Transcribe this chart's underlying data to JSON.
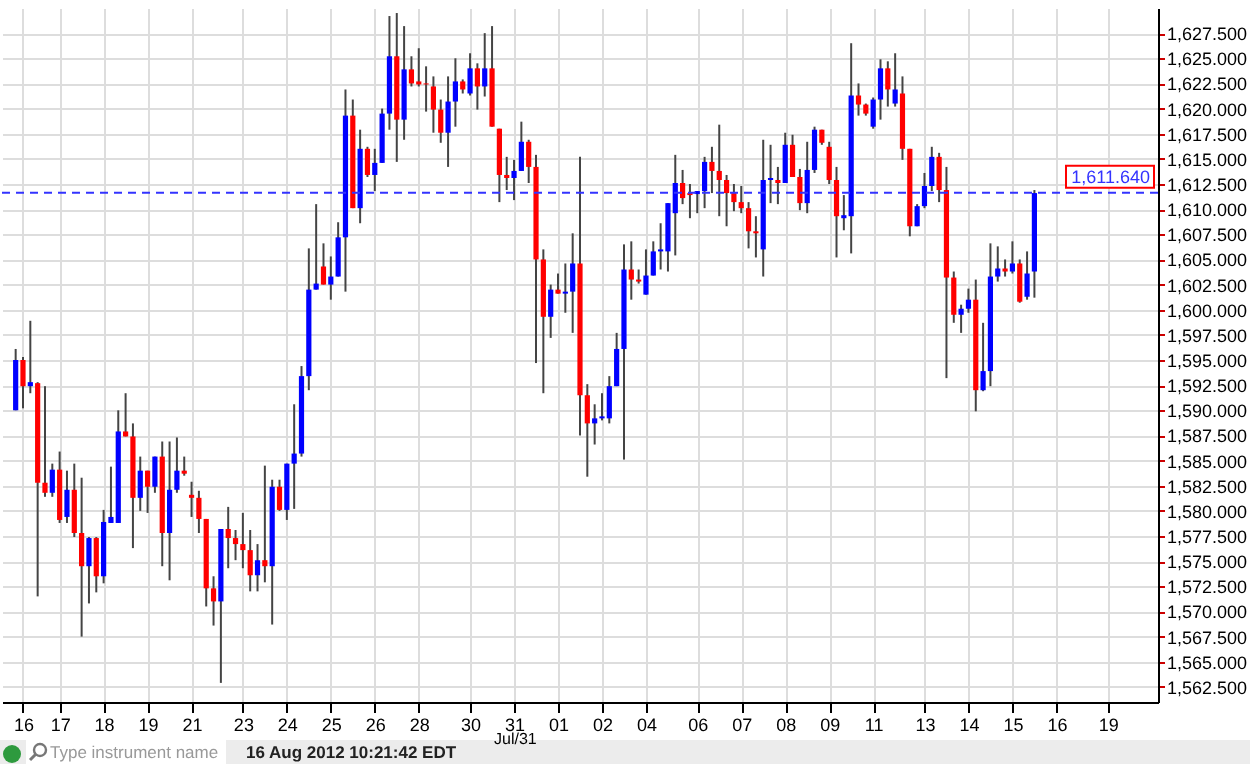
{
  "chart_data": {
    "type": "candlestick",
    "categories": [
      null,
      "16",
      null,
      null,
      null,
      null,
      "17",
      null,
      null,
      null,
      null,
      null,
      "18",
      null,
      null,
      null,
      null,
      null,
      "19",
      null,
      null,
      null,
      null,
      null,
      "21",
      null,
      null,
      null,
      null,
      null,
      null,
      "23",
      null,
      null,
      null,
      null,
      null,
      "24",
      null,
      null,
      null,
      null,
      null,
      "25",
      null,
      null,
      null,
      null,
      null,
      "26",
      null,
      null,
      null,
      null,
      null,
      "28",
      null,
      null,
      null,
      null,
      null,
      null,
      "30",
      null,
      null,
      null,
      null,
      null,
      "31",
      null,
      null,
      null,
      null,
      null,
      "01",
      null,
      null,
      null,
      null,
      null,
      "02",
      null,
      null,
      null,
      null,
      null,
      "04",
      null,
      null,
      null,
      null,
      null,
      null,
      "06",
      null,
      null,
      null,
      null,
      null,
      "07",
      null,
      null,
      null,
      null,
      null,
      "08",
      null,
      null,
      null,
      null,
      null,
      "09",
      null,
      null,
      null,
      null,
      null,
      "11",
      null,
      null,
      null,
      null,
      null,
      null,
      "13",
      null,
      null,
      null,
      null,
      null,
      "14",
      null,
      null,
      null,
      null,
      null,
      "15",
      null,
      null,
      null,
      null,
      null,
      "16",
      null,
      null,
      null,
      null,
      null,
      null,
      "19",
      null,
      null,
      null,
      null,
      null
    ],
    "ohlc": [
      [
        1590.0,
        1596.1,
        1590.0,
        1595.0
      ],
      [
        1595.0,
        1595.3,
        1590.2,
        1592.4
      ],
      [
        1592.4,
        1598.9,
        1591.7,
        1592.8
      ],
      [
        1592.7,
        1592.8,
        1571.5,
        1582.8
      ],
      [
        1582.8,
        1592.4,
        1581.4,
        1581.8
      ],
      [
        1581.8,
        1584.7,
        1581.4,
        1584.1
      ],
      [
        1584.1,
        1585.9,
        1578.8,
        1579.1
      ],
      [
        1579.4,
        1584.0,
        1578.8,
        1582.1
      ],
      [
        1582.1,
        1584.7,
        1577.4,
        1577.8
      ],
      [
        1577.8,
        1583.3,
        1567.5,
        1574.5
      ],
      [
        1574.5,
        1577.4,
        1570.8,
        1577.3
      ],
      [
        1577.3,
        1577.4,
        1571.9,
        1573.5
      ],
      [
        1573.5,
        1580.1,
        1572.8,
        1578.9
      ],
      [
        1578.8,
        1584.4,
        1578.8,
        1579.4
      ],
      [
        1578.8,
        1590.0,
        1578.8,
        1587.9
      ],
      [
        1587.9,
        1591.7,
        1587.4,
        1587.4
      ],
      [
        1587.4,
        1588.7,
        1576.3,
        1581.3
      ],
      [
        1581.3,
        1585.4,
        1580.0,
        1584.0
      ],
      [
        1584.0,
        1584.0,
        1579.8,
        1582.4
      ],
      [
        1582.4,
        1585.4,
        1581.8,
        1585.4
      ],
      [
        1585.4,
        1586.9,
        1574.5,
        1577.8
      ],
      [
        1577.8,
        1586.9,
        1573.1,
        1582.1
      ],
      [
        1582.1,
        1587.3,
        1581.8,
        1584.0
      ],
      [
        1584.0,
        1585.4,
        1583.5,
        1583.7
      ],
      [
        1581.6,
        1582.9,
        1579.4,
        1581.3
      ],
      [
        1581.3,
        1582.0,
        1577.8,
        1579.2
      ],
      [
        1579.2,
        1579.2,
        1570.5,
        1572.3
      ],
      [
        1572.3,
        1573.5,
        1568.6,
        1571.0
      ],
      [
        1571.0,
        1578.2,
        1562.9,
        1578.2
      ],
      [
        1578.2,
        1580.4,
        1574.3,
        1577.3
      ],
      [
        1577.3,
        1578.1,
        1575.1,
        1576.7
      ],
      [
        1576.7,
        1579.8,
        1574.3,
        1576.1
      ],
      [
        1576.1,
        1578.1,
        1572.0,
        1573.6
      ],
      [
        1573.6,
        1576.7,
        1572.0,
        1575.1
      ],
      [
        1575.1,
        1584.5,
        1572.9,
        1574.5
      ],
      [
        1574.5,
        1583.1,
        1568.7,
        1582.4
      ],
      [
        1582.4,
        1583.1,
        1580.0,
        1580.1
      ],
      [
        1580.1,
        1584.7,
        1579.1,
        1584.7
      ],
      [
        1584.7,
        1590.6,
        1580.2,
        1585.7
      ],
      [
        1585.7,
        1594.4,
        1585.4,
        1593.4
      ],
      [
        1593.4,
        1606.1,
        1592.0,
        1602.0
      ],
      [
        1602.0,
        1610.5,
        1602.0,
        1602.6
      ],
      [
        1604.3,
        1606.6,
        1602.5,
        1602.5
      ],
      [
        1602.5,
        1605.3,
        1601.0,
        1603.3
      ],
      [
        1603.3,
        1608.7,
        1603.3,
        1607.2
      ],
      [
        1607.2,
        1621.9,
        1601.8,
        1619.3
      ],
      [
        1619.3,
        1620.9,
        1610.1,
        1610.1
      ],
      [
        1610.1,
        1617.9,
        1608.6,
        1616.0
      ],
      [
        1616.0,
        1616.2,
        1613.2,
        1613.4
      ],
      [
        1613.4,
        1616.0,
        1611.8,
        1614.6
      ],
      [
        1614.6,
        1620.0,
        1614.6,
        1619.5
      ],
      [
        1619.5,
        1629.2,
        1617.9,
        1625.2
      ],
      [
        1625.2,
        1629.5,
        1614.7,
        1618.9
      ],
      [
        1618.9,
        1628.2,
        1616.9,
        1623.9
      ],
      [
        1623.9,
        1625.2,
        1622.2,
        1622.5
      ],
      [
        1622.7,
        1626.0,
        1622.2,
        1622.4
      ],
      [
        1622.5,
        1624.2,
        1619.7,
        1622.4
      ],
      [
        1622.2,
        1623.2,
        1617.6,
        1619.9
      ],
      [
        1619.9,
        1620.9,
        1616.6,
        1617.6
      ],
      [
        1617.6,
        1623.2,
        1614.2,
        1620.7
      ],
      [
        1620.7,
        1625.0,
        1618.2,
        1622.7
      ],
      [
        1622.7,
        1622.9,
        1621.5,
        1621.9
      ],
      [
        1621.5,
        1625.5,
        1621.3,
        1624.0
      ],
      [
        1624.0,
        1624.5,
        1619.9,
        1622.2
      ],
      [
        1622.2,
        1627.5,
        1621.2,
        1624.0
      ],
      [
        1624.0,
        1628.2,
        1618.2,
        1618.2
      ],
      [
        1618.0,
        1618.0,
        1610.7,
        1613.4
      ],
      [
        1613.4,
        1615.2,
        1611.9,
        1613.1
      ],
      [
        1613.1,
        1614.9,
        1610.9,
        1613.8
      ],
      [
        1613.8,
        1618.7,
        1613.8,
        1616.7
      ],
      [
        1616.7,
        1616.9,
        1612.6,
        1614.2
      ],
      [
        1614.2,
        1615.4,
        1594.7,
        1605.0
      ],
      [
        1605.0,
        1606.0,
        1591.7,
        1599.3
      ],
      [
        1599.3,
        1602.5,
        1597.2,
        1602.0
      ],
      [
        1602.0,
        1603.6,
        1601.6,
        1601.6
      ],
      [
        1601.6,
        1604.6,
        1599.7,
        1601.8
      ],
      [
        1601.8,
        1607.6,
        1597.7,
        1604.6
      ],
      [
        1604.6,
        1615.2,
        1587.5,
        1591.5
      ],
      [
        1591.5,
        1592.6,
        1583.4,
        1588.7
      ],
      [
        1588.7,
        1590.6,
        1586.6,
        1589.2
      ],
      [
        1589.2,
        1591.7,
        1589.0,
        1589.4
      ],
      [
        1589.2,
        1593.4,
        1588.7,
        1592.4
      ],
      [
        1592.4,
        1597.7,
        1592.4,
        1596.1
      ],
      [
        1596.1,
        1606.5,
        1585.1,
        1604.0
      ],
      [
        1604.0,
        1606.8,
        1601.0,
        1603.0
      ],
      [
        1603.0,
        1604.0,
        1602.6,
        1602.8
      ],
      [
        1601.5,
        1606.0,
        1601.5,
        1603.4
      ],
      [
        1603.4,
        1606.8,
        1603.4,
        1605.8
      ],
      [
        1605.8,
        1608.6,
        1604.0,
        1606.0
      ],
      [
        1605.8,
        1610.6,
        1603.8,
        1610.6
      ],
      [
        1609.6,
        1615.4,
        1605.4,
        1612.6
      ],
      [
        1612.6,
        1613.9,
        1610.5,
        1611.1
      ],
      [
        1611.6,
        1612.5,
        1609.1,
        1611.4
      ],
      [
        1611.5,
        1611.8,
        1609.6,
        1611.8
      ],
      [
        1611.8,
        1615.2,
        1610.1,
        1614.7
      ],
      [
        1614.7,
        1616.2,
        1611.6,
        1613.8
      ],
      [
        1613.8,
        1618.4,
        1609.3,
        1612.9
      ],
      [
        1612.9,
        1613.4,
        1608.3,
        1611.6
      ],
      [
        1611.6,
        1612.5,
        1609.8,
        1610.7
      ],
      [
        1610.7,
        1612.3,
        1609.6,
        1610.1
      ],
      [
        1610.1,
        1610.7,
        1606.1,
        1607.8
      ],
      [
        1607.8,
        1609.3,
        1605.2,
        1607.6
      ],
      [
        1606.0,
        1616.9,
        1603.3,
        1612.9
      ],
      [
        1612.9,
        1616.4,
        1610.6,
        1613.1
      ],
      [
        1612.9,
        1614.2,
        1610.5,
        1612.6
      ],
      [
        1612.6,
        1617.6,
        1612.6,
        1616.4
      ],
      [
        1616.4,
        1617.4,
        1613.2,
        1613.2
      ],
      [
        1613.2,
        1614.0,
        1609.9,
        1610.6
      ],
      [
        1610.6,
        1616.7,
        1609.6,
        1613.9
      ],
      [
        1613.9,
        1618.2,
        1613.6,
        1617.9
      ],
      [
        1617.9,
        1617.9,
        1616.4,
        1616.6
      ],
      [
        1616.2,
        1616.7,
        1612.5,
        1612.9
      ],
      [
        1612.9,
        1614.2,
        1605.2,
        1609.3
      ],
      [
        1609.1,
        1611.4,
        1607.9,
        1609.4
      ],
      [
        1609.3,
        1626.5,
        1605.6,
        1621.3
      ],
      [
        1621.3,
        1622.5,
        1619.3,
        1620.4
      ],
      [
        1620.4,
        1620.5,
        1619.3,
        1619.5
      ],
      [
        1618.2,
        1621.1,
        1618.0,
        1620.9
      ],
      [
        1620.9,
        1624.9,
        1618.9,
        1624.0
      ],
      [
        1624.0,
        1624.7,
        1620.2,
        1621.9
      ],
      [
        1620.5,
        1625.5,
        1620.2,
        1621.9
      ],
      [
        1621.5,
        1623.2,
        1614.9,
        1616.0
      ],
      [
        1616.0,
        1616.0,
        1607.3,
        1608.3
      ],
      [
        1608.3,
        1610.5,
        1608.3,
        1610.3
      ],
      [
        1610.3,
        1613.6,
        1610.1,
        1612.3
      ],
      [
        1612.3,
        1616.2,
        1611.8,
        1615.2
      ],
      [
        1615.2,
        1615.6,
        1610.7,
        1611.9
      ],
      [
        1611.9,
        1614.2,
        1593.2,
        1603.2
      ],
      [
        1603.2,
        1603.8,
        1598.7,
        1599.5
      ],
      [
        1599.5,
        1600.5,
        1597.7,
        1600.1
      ],
      [
        1600.1,
        1602.1,
        1599.7,
        1601.0
      ],
      [
        1601.0,
        1603.0,
        1589.9,
        1592.0
      ],
      [
        1592.0,
        1598.7,
        1591.9,
        1593.9
      ],
      [
        1593.9,
        1606.6,
        1592.4,
        1603.3
      ],
      [
        1603.3,
        1606.3,
        1602.8,
        1604.1
      ],
      [
        1604.1,
        1605.0,
        1603.3,
        1603.8
      ],
      [
        1603.8,
        1606.8,
        1603.6,
        1604.6
      ],
      [
        1604.6,
        1605.0,
        1600.7,
        1600.8
      ],
      [
        1601.3,
        1605.8,
        1601.0,
        1603.6
      ],
      [
        1603.8,
        1611.9,
        1601.2,
        1611.6
      ],
      null,
      null,
      null,
      null,
      null,
      null,
      null,
      null,
      null,
      null,
      null,
      null,
      null,
      null,
      null
    ],
    "colors": [
      "#0000ff",
      "#ff0000",
      "#0000ff",
      "#ff0000",
      "#ff0000",
      "#0000ff",
      "#ff0000",
      "#0000ff",
      "#ff0000",
      "#ff0000",
      "#0000ff",
      "#ff0000",
      "#0000ff",
      "#0000ff",
      "#0000ff",
      "#ff0000",
      "#ff0000",
      "#0000ff",
      "#ff0000",
      "#0000ff",
      "#ff0000",
      "#0000ff",
      "#0000ff",
      "#ff0000",
      "#ff0000",
      "#ff0000",
      "#ff0000",
      "#ff0000",
      "#0000ff",
      "#ff0000",
      "#ff0000",
      "#ff0000",
      "#ff0000",
      "#0000ff",
      "#ff0000",
      "#0000ff",
      "#ff0000",
      "#0000ff",
      "#0000ff",
      "#0000ff",
      "#0000ff",
      "#0000ff",
      "#ff0000",
      "#0000ff",
      "#0000ff",
      "#0000ff",
      "#ff0000",
      "#0000ff",
      "#ff0000",
      "#0000ff",
      "#0000ff",
      "#0000ff",
      "#ff0000",
      "#0000ff",
      "#ff0000",
      "#ff0000",
      "#ff0000",
      "#ff0000",
      "#ff0000",
      "#0000ff",
      "#0000ff",
      "#ff0000",
      "#0000ff",
      "#ff0000",
      "#0000ff",
      "#ff0000",
      "#ff0000",
      "#ff0000",
      "#0000ff",
      "#0000ff",
      "#ff0000",
      "#ff0000",
      "#ff0000",
      "#0000ff",
      "#ff0000",
      "#0000ff",
      "#0000ff",
      "#ff0000",
      "#ff0000",
      "#0000ff",
      "#0000ff",
      "#0000ff",
      "#0000ff",
      "#0000ff",
      "#ff0000",
      "#ff0000",
      "#0000ff",
      "#0000ff",
      "#0000ff",
      "#0000ff",
      "#0000ff",
      "#ff0000",
      "#ff0000",
      "#0000ff",
      "#0000ff",
      "#ff0000",
      "#ff0000",
      "#ff0000",
      "#ff0000",
      "#ff0000",
      "#ff0000",
      "#ff0000",
      "#0000ff",
      "#0000ff",
      "#ff0000",
      "#0000ff",
      "#ff0000",
      "#ff0000",
      "#0000ff",
      "#0000ff",
      "#ff0000",
      "#ff0000",
      "#ff0000",
      "#0000ff",
      "#0000ff",
      "#ff0000",
      "#ff0000",
      "#0000ff",
      "#0000ff",
      "#ff0000",
      "#0000ff",
      "#ff0000",
      "#ff0000",
      "#0000ff",
      "#0000ff",
      "#0000ff",
      "#ff0000",
      "#ff0000",
      "#ff0000",
      "#0000ff",
      "#0000ff",
      "#ff0000",
      "#0000ff",
      "#0000ff",
      "#0000ff",
      "#ff0000",
      "#0000ff",
      "#ff0000",
      "#0000ff",
      "#0000ff",
      null,
      null,
      null,
      null,
      null,
      null,
      null,
      null,
      null,
      null,
      null,
      null,
      null,
      null,
      null
    ],
    "ylim": [
      1561,
      1630
    ],
    "yticks": [
      {
        "value": 1562.5,
        "label": "1,562.500"
      },
      {
        "value": 1565,
        "label": "1,565.000"
      },
      {
        "value": 1567.5,
        "label": "1,567.500"
      },
      {
        "value": 1570,
        "label": "1,570.000"
      },
      {
        "value": 1572.5,
        "label": "1,572.500"
      },
      {
        "value": 1575,
        "label": "1,575.000"
      },
      {
        "value": 1577.5,
        "label": "1,577.500"
      },
      {
        "value": 1580,
        "label": "1,580.000"
      },
      {
        "value": 1582.5,
        "label": "1,582.500"
      },
      {
        "value": 1585,
        "label": "1,585.000"
      },
      {
        "value": 1587.5,
        "label": "1,587.500"
      },
      {
        "value": 1590,
        "label": "1,590.000"
      },
      {
        "value": 1592.5,
        "label": "1,592.500"
      },
      {
        "value": 1595,
        "label": "1,595.000"
      },
      {
        "value": 1597.5,
        "label": "1,597.500"
      },
      {
        "value": 1600,
        "label": "1,600.000"
      },
      {
        "value": 1602.5,
        "label": "1,602.500"
      },
      {
        "value": 1605,
        "label": "1,605.000"
      },
      {
        "value": 1607.5,
        "label": "1,607.500"
      },
      {
        "value": 1610,
        "label": "1,610.000"
      },
      {
        "value": 1612.5,
        "label": "1,612.500"
      },
      {
        "value": 1615,
        "label": "1,615.000"
      },
      {
        "value": 1617.5,
        "label": "1,617.500"
      },
      {
        "value": 1620,
        "label": "1,620.000"
      },
      {
        "value": 1622.5,
        "label": "1,622.500"
      },
      {
        "value": 1625,
        "label": "1,625.000"
      },
      {
        "value": 1627.5,
        "label": "1,627.500"
      }
    ],
    "grid": true,
    "ref_lines": [
      {
        "axis": "y",
        "value": 1611.64,
        "label": "1,611.640",
        "color": "#3333ff",
        "line_style": "dashed"
      }
    ],
    "annotations": [
      "Jul/31",
      "16 Aug 2012 10:21:42 EDT",
      "Type instrument name"
    ]
  }
}
